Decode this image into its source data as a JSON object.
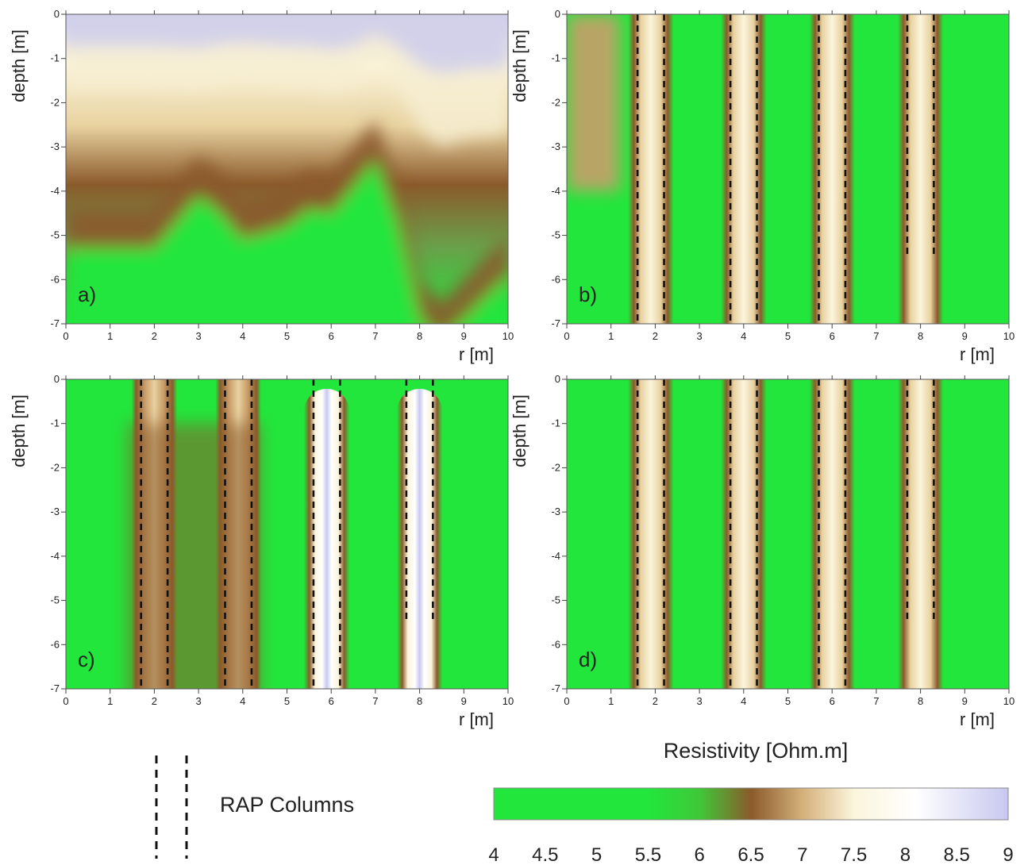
{
  "chart_data": [
    {
      "type": "heatmap",
      "panel_label": "a)",
      "xlabel": "r [m]",
      "ylabel": "depth [m]",
      "xlim": [
        0,
        10
      ],
      "ylim": [
        -7,
        0
      ],
      "x_ticks": [
        "0",
        "1",
        "2",
        "3",
        "4",
        "5",
        "6",
        "7",
        "8",
        "9",
        "10"
      ],
      "y_ticks": [
        "0",
        "-1",
        "-2",
        "-3",
        "-4",
        "-5",
        "-6",
        "-7"
      ],
      "rap_columns": [],
      "rap_column_depth": [],
      "resistivity_profile": {
        "x": [
          0,
          1,
          2,
          3,
          3.5,
          4,
          5,
          5.5,
          6,
          6.5,
          7,
          7.5,
          8,
          8.5,
          9,
          10
        ],
        "iso_7_depth": [
          -1.6,
          -1.6,
          -1.6,
          -1.7,
          -1.5,
          -1.4,
          -1.6,
          -1.6,
          -1.8,
          -1.6,
          -1.0,
          -1.6,
          -2.6,
          -3.0,
          -2.8,
          -2.7
        ],
        "iso_6_depth": [
          -4.4,
          -4.4,
          -4.4,
          -3.2,
          -3.6,
          -4.2,
          -3.9,
          -3.5,
          -3.6,
          -3.0,
          -2.4,
          -3.8,
          -6.0,
          -6.5,
          -6.0,
          -5.0
        ],
        "top_value": 8.2,
        "bottom_value": 4.5
      }
    },
    {
      "type": "heatmap",
      "panel_label": "b)",
      "xlabel": "r [m]",
      "ylabel": "depth [m]",
      "xlim": [
        0,
        10
      ],
      "ylim": [
        -7,
        0
      ],
      "x_ticks": [
        "0",
        "1",
        "2",
        "3",
        "4",
        "5",
        "6",
        "7",
        "8",
        "9",
        "10"
      ],
      "y_ticks": [
        "0",
        "-1",
        "-2",
        "-3",
        "-4",
        "-5",
        "-6",
        "-7"
      ],
      "rap_columns": [
        [
          1.6,
          2.2
        ],
        [
          3.7,
          4.3
        ],
        [
          5.7,
          6.3
        ],
        [
          7.7,
          8.3
        ]
      ],
      "rap_column_depth": [
        -7,
        -7,
        -7,
        -5.5
      ],
      "column_value": 7.6
    },
    {
      "type": "heatmap",
      "panel_label": "c)",
      "xlabel": "r [m]",
      "ylabel": "depth [m]",
      "xlim": [
        0,
        10
      ],
      "ylim": [
        -7,
        0
      ],
      "x_ticks": [
        "0",
        "1",
        "2",
        "3",
        "4",
        "5",
        "6",
        "7",
        "8",
        "9",
        "10"
      ],
      "y_ticks": [
        "0",
        "-1",
        "-2",
        "-3",
        "-4",
        "-5",
        "-6",
        "-7"
      ],
      "rap_columns": [
        [
          1.7,
          2.3
        ],
        [
          3.6,
          4.2
        ],
        [
          5.6,
          6.2
        ],
        [
          7.7,
          8.3
        ]
      ],
      "rap_column_depth": [
        -7,
        -7,
        -7,
        -5.5
      ],
      "column_value": 8.3
    },
    {
      "type": "heatmap",
      "panel_label": "d)",
      "xlabel": "r [m]",
      "ylabel": "depth [m]",
      "xlim": [
        0,
        10
      ],
      "ylim": [
        -7,
        0
      ],
      "x_ticks": [
        "0",
        "1",
        "2",
        "3",
        "4",
        "5",
        "6",
        "7",
        "8",
        "9",
        "10"
      ],
      "y_ticks": [
        "0",
        "-1",
        "-2",
        "-3",
        "-4",
        "-5",
        "-6",
        "-7"
      ],
      "rap_columns": [
        [
          1.6,
          2.2
        ],
        [
          3.7,
          4.3
        ],
        [
          5.7,
          6.3
        ],
        [
          7.7,
          8.3
        ]
      ],
      "rap_column_depth": [
        -7,
        -7,
        -7,
        -5.5
      ],
      "column_value": 7.4
    }
  ],
  "colorbar": {
    "title": "Resistivity [Ohm.m]",
    "min": 4,
    "max": 9,
    "ticks": [
      "4",
      "4.5",
      "5",
      "5.5",
      "6",
      "6.5",
      "7",
      "7.5",
      "8",
      "8.5",
      "9"
    ],
    "colors": {
      "low": "#22e63c",
      "mid_brown": "#8b5a2b",
      "mid_cream": "#fbf5dc",
      "white": "#ffffff",
      "high": "#c8c8f0"
    }
  },
  "legend": {
    "label": "RAP Columns"
  }
}
